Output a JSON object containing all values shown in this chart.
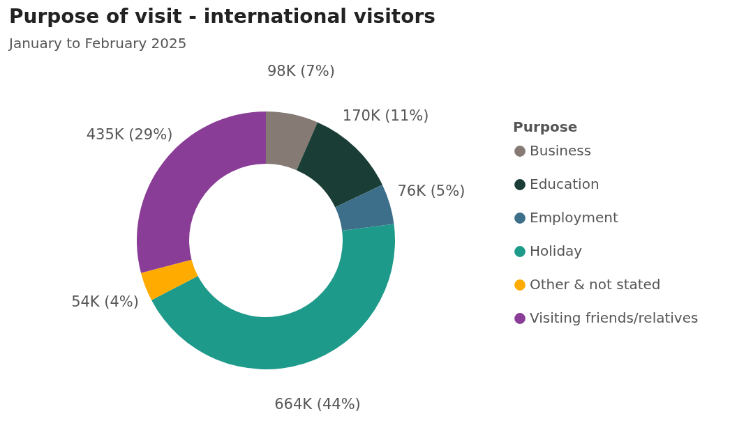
{
  "chart_data": {
    "type": "donut",
    "title": "Purpose of visit - international visitors",
    "subtitle": "January to February 2025",
    "legend_title": "Purpose",
    "categories": [
      "Business",
      "Education",
      "Employment",
      "Holiday",
      "Other & not stated",
      "Visiting friends/relatives"
    ],
    "values": [
      98000,
      170000,
      76000,
      664000,
      54000,
      435000
    ],
    "colors": [
      "#857a74",
      "#1a3d35",
      "#3d6f8a",
      "#1e9a8a",
      "#ffab00",
      "#8a3d96"
    ],
    "value_labels": [
      "98K (7%)",
      "170K (11%)",
      "76K (5%)",
      "664K (44%)",
      "54K (4%)",
      "435K (29%)"
    ],
    "legend": "right"
  }
}
